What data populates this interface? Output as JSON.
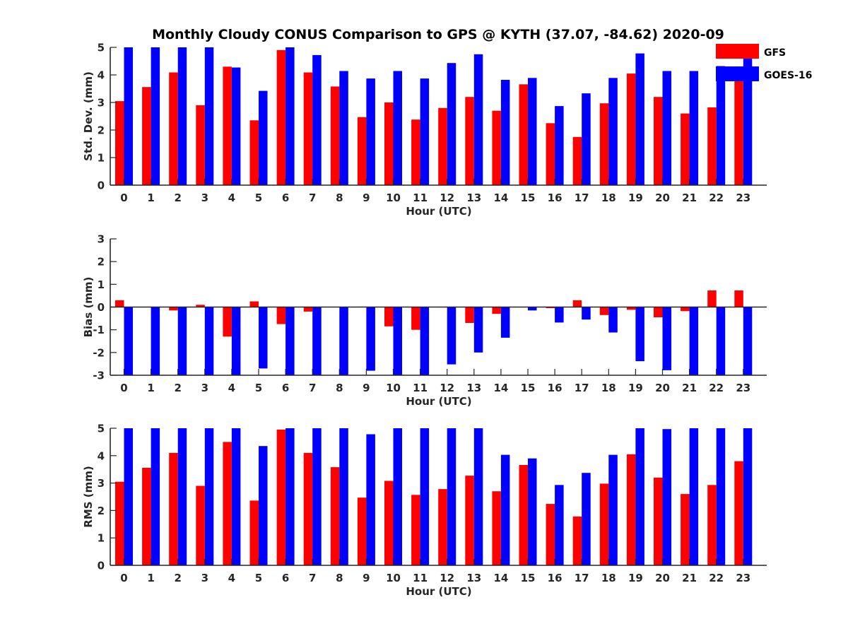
{
  "chart_data": [
    {
      "type": "bar",
      "title": "Monthly Cloudy CONUS Comparison to GPS @ KYTH (37.07, -84.62) 2020-09",
      "xlabel": "Hour (UTC)",
      "ylabel": "Std. Dev. (mm)",
      "ylim": [
        0,
        5
      ],
      "yticks": [
        0,
        1,
        2,
        3,
        4,
        5
      ],
      "categories": [
        "0",
        "1",
        "2",
        "3",
        "4",
        "5",
        "6",
        "7",
        "8",
        "9",
        "10",
        "11",
        "12",
        "13",
        "14",
        "15",
        "16",
        "17",
        "18",
        "19",
        "20",
        "21",
        "22",
        "23"
      ],
      "series": [
        {
          "name": "GFS",
          "color": "#ff0000",
          "values": [
            3.05,
            3.56,
            4.09,
            2.9,
            4.3,
            2.35,
            4.9,
            4.09,
            3.58,
            2.47,
            3.0,
            2.38,
            2.8,
            3.2,
            2.7,
            3.66,
            2.25,
            1.75,
            2.97,
            4.05,
            3.2,
            2.6,
            2.82,
            3.8
          ]
        },
        {
          "name": "GOES-16",
          "color": "#0000ff",
          "values": [
            5.0,
            5.0,
            5.0,
            5.0,
            4.27,
            3.42,
            5.0,
            4.72,
            4.14,
            3.87,
            4.14,
            3.87,
            4.43,
            4.75,
            3.82,
            3.89,
            2.87,
            3.33,
            3.89,
            4.78,
            4.14,
            4.14,
            4.32,
            4.6
          ]
        }
      ],
      "legend": {
        "position": "top-right",
        "entries": [
          "GFS",
          "GOES-16"
        ]
      },
      "grid": false
    },
    {
      "type": "bar",
      "xlabel": "Hour (UTC)",
      "ylabel": "Bias (mm)",
      "ylim": [
        -3,
        3
      ],
      "yticks": [
        -3,
        -2,
        -1,
        0,
        1,
        2,
        3
      ],
      "categories": [
        "0",
        "1",
        "2",
        "3",
        "4",
        "5",
        "6",
        "7",
        "8",
        "9",
        "10",
        "11",
        "12",
        "13",
        "14",
        "15",
        "16",
        "17",
        "18",
        "19",
        "20",
        "21",
        "22",
        "23"
      ],
      "series": [
        {
          "name": "GFS",
          "color": "#ff0000",
          "values": [
            0.3,
            0.0,
            -0.15,
            0.1,
            -1.3,
            0.25,
            -0.75,
            -0.2,
            0.0,
            0.02,
            -0.85,
            -1.0,
            -0.02,
            -0.7,
            -0.3,
            0.0,
            -0.05,
            0.3,
            -0.35,
            -0.12,
            -0.45,
            -0.18,
            0.73,
            0.73
          ]
        },
        {
          "name": "GOES-16",
          "color": "#0000ff",
          "values": [
            -3.0,
            -3.0,
            -3.0,
            -3.0,
            -3.0,
            -2.7,
            -3.0,
            -3.0,
            -3.0,
            -2.8,
            -3.0,
            -3.0,
            -2.52,
            -2.0,
            -1.35,
            -0.15,
            -0.68,
            -0.55,
            -1.12,
            -2.38,
            -2.78,
            -3.0,
            -3.0,
            -3.0
          ]
        }
      ],
      "grid": false
    },
    {
      "type": "bar",
      "xlabel": "Hour (UTC)",
      "ylabel": "RMS (mm)",
      "ylim": [
        0,
        5
      ],
      "yticks": [
        0,
        1,
        2,
        3,
        4,
        5
      ],
      "categories": [
        "0",
        "1",
        "2",
        "3",
        "4",
        "5",
        "6",
        "7",
        "8",
        "9",
        "10",
        "11",
        "12",
        "13",
        "14",
        "15",
        "16",
        "17",
        "18",
        "19",
        "20",
        "21",
        "22",
        "23"
      ],
      "series": [
        {
          "name": "GFS",
          "color": "#ff0000",
          "values": [
            3.05,
            3.56,
            4.1,
            2.9,
            4.5,
            2.36,
            4.95,
            4.1,
            3.58,
            2.47,
            3.08,
            2.57,
            2.78,
            3.27,
            2.7,
            3.66,
            2.24,
            1.78,
            2.98,
            4.05,
            3.2,
            2.6,
            2.93,
            3.8
          ]
        },
        {
          "name": "GOES-16",
          "color": "#0000ff",
          "values": [
            5.0,
            5.0,
            5.0,
            5.0,
            5.0,
            4.35,
            5.0,
            5.0,
            5.0,
            4.78,
            5.0,
            5.0,
            5.0,
            5.0,
            4.03,
            3.9,
            2.93,
            3.37,
            4.03,
            5.0,
            4.97,
            5.0,
            5.0,
            5.0
          ]
        }
      ],
      "grid": false
    }
  ]
}
